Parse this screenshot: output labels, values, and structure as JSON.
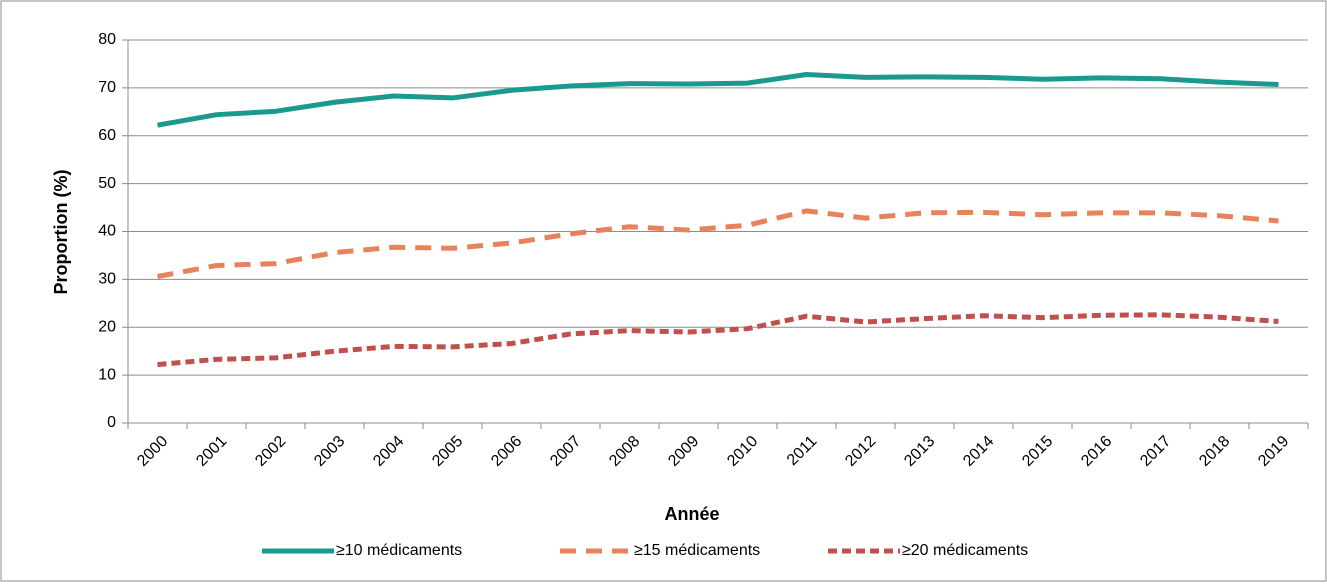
{
  "chart_data": {
    "type": "line",
    "x_label": "Année",
    "y_label": "Proportion (%)",
    "categories": [
      "2000",
      "2001",
      "2002",
      "2003",
      "2004",
      "2005",
      "2006",
      "2007",
      "2008",
      "2009",
      "2010",
      "2011",
      "2012",
      "2013",
      "2014",
      "2015",
      "2016",
      "2017",
      "2018",
      "2019"
    ],
    "series": [
      {
        "name": "≥10 médicaments",
        "color": "#1a9990",
        "dash": "solid",
        "values": [
          62.2,
          64.4,
          65.1,
          67.0,
          68.3,
          67.9,
          69.5,
          70.4,
          70.9,
          70.8,
          71.0,
          72.8,
          72.2,
          72.3,
          72.2,
          71.8,
          72.1,
          71.9,
          71.2,
          70.7
        ]
      },
      {
        "name": "≥15 médicaments",
        "color": "#e8825a",
        "dash": "dashed",
        "values": [
          30.6,
          32.9,
          33.3,
          35.6,
          36.7,
          36.5,
          37.6,
          39.5,
          41.0,
          40.3,
          41.3,
          44.3,
          42.8,
          43.9,
          44.0,
          43.5,
          43.9,
          43.9,
          43.3,
          42.2
        ]
      },
      {
        "name": "≥20 médicaments",
        "color": "#c0504d",
        "dash": "dotted",
        "values": [
          12.2,
          13.3,
          13.6,
          15.0,
          16.0,
          15.9,
          16.6,
          18.6,
          19.3,
          19.0,
          19.7,
          22.3,
          21.1,
          21.8,
          22.4,
          22.0,
          22.5,
          22.6,
          22.1,
          21.2
        ]
      }
    ],
    "ylim": [
      0,
      80
    ],
    "yticks": [
      0,
      10,
      20,
      30,
      40,
      50,
      60,
      70,
      80
    ],
    "grid": true,
    "legend": "bottom"
  }
}
